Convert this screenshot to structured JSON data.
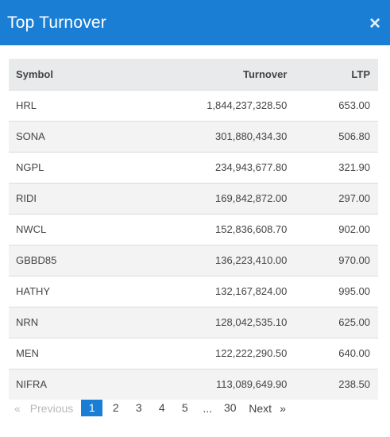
{
  "header": {
    "title": "Top Turnover",
    "close_glyph": "×"
  },
  "table": {
    "columns": [
      "Symbol",
      "Turnover",
      "LTP"
    ],
    "rows": [
      {
        "symbol": "HRL",
        "turnover": "1,844,237,328.50",
        "ltp": "653.00"
      },
      {
        "symbol": "SONA",
        "turnover": "301,880,434.30",
        "ltp": "506.80"
      },
      {
        "symbol": "NGPL",
        "turnover": "234,943,677.80",
        "ltp": "321.90"
      },
      {
        "symbol": "RIDI",
        "turnover": "169,842,872.00",
        "ltp": "297.00"
      },
      {
        "symbol": "NWCL",
        "turnover": "152,836,608.70",
        "ltp": "902.00"
      },
      {
        "symbol": "GBBD85",
        "turnover": "136,223,410.00",
        "ltp": "970.00"
      },
      {
        "symbol": "HATHY",
        "turnover": "132,167,824.00",
        "ltp": "995.00"
      },
      {
        "symbol": "NRN",
        "turnover": "128,042,535.10",
        "ltp": "625.00"
      },
      {
        "symbol": "MEN",
        "turnover": "122,222,290.50",
        "ltp": "640.00"
      },
      {
        "symbol": "NIFRA",
        "turnover": "113,089,649.90",
        "ltp": "238.50"
      }
    ]
  },
  "pagination": {
    "prev_arrow": "«",
    "prev_label": "Previous",
    "pages": [
      "1",
      "2",
      "3",
      "4",
      "5"
    ],
    "ellipsis": "...",
    "last_page": "30",
    "next_label": "Next",
    "next_arrow": "»",
    "active_page": "1"
  },
  "colors": {
    "accent": "#1a7fd4"
  }
}
